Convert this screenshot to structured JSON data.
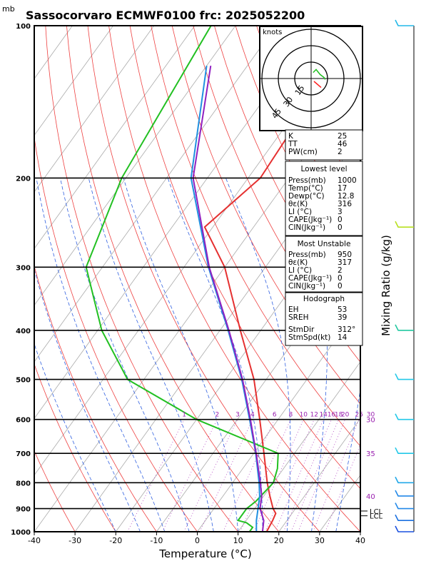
{
  "header": {
    "units_label": "mb",
    "title": "Sassocorvaro ECMWF0100  frc: 2025052200"
  },
  "xaxis": {
    "label": "Temperature (°C)"
  },
  "yaxis": {
    "label": "Mixing Ratio (g/kg)"
  },
  "hodograph": {
    "units": "knots",
    "ring_labels": [
      "15",
      "30",
      "45"
    ]
  },
  "indices": {
    "basic": [
      {
        "k": "K",
        "v": "25"
      },
      {
        "k": "TT",
        "v": "46"
      },
      {
        "k": "PW(cm)",
        "v": "2"
      }
    ],
    "lowest": {
      "title": "Lowest level",
      "rows": [
        {
          "k": "Press(mb)",
          "v": "1000"
        },
        {
          "k": "Temp(°C)",
          "v": "17"
        },
        {
          "k": "Dewp(°C)",
          "v": "12.8"
        },
        {
          "k": "θε(K)",
          "v": "316"
        },
        {
          "k": "LI (°C)",
          "v": "3"
        },
        {
          "k": "CAPE(Jkg⁻¹)",
          "v": "0"
        },
        {
          "k": "CIN(Jkg⁻¹)",
          "v": "0"
        }
      ]
    },
    "unstable": {
      "title": "Most Unstable",
      "rows": [
        {
          "k": "Press(mb)",
          "v": "950"
        },
        {
          "k": "θε(K)",
          "v": "317"
        },
        {
          "k": "LI (°C)",
          "v": "2"
        },
        {
          "k": "CAPE(Jkg⁻¹)",
          "v": "0"
        },
        {
          "k": "CIN(Jkg⁻¹)",
          "v": "0"
        }
      ]
    },
    "hodo": {
      "title": "Hodograph",
      "rows": [
        {
          "k": "EH",
          "v": "53"
        },
        {
          "k": "SREH",
          "v": "39"
        },
        {
          "k": "StmDir",
          "v": "312°"
        },
        {
          "k": "StmSpd(kt)",
          "v": "14"
        }
      ]
    }
  },
  "chart_data": {
    "type": "line",
    "x_range": [
      -40,
      40
    ],
    "y_range_hpa": [
      1000,
      100
    ],
    "y_scale": "log",
    "x_ticks": [
      -40,
      -30,
      -20,
      -10,
      0,
      10,
      20,
      30,
      40
    ],
    "pressure_labels": [
      100,
      200,
      300,
      400,
      500,
      600,
      700,
      800,
      900,
      1000
    ],
    "mixing_ratio_labels": [
      {
        "label": "1",
        "w": 1
      },
      {
        "label": "2",
        "w": 2
      },
      {
        "label": "3",
        "w": 3
      },
      {
        "label": "4",
        "w": 4
      },
      {
        "label": "6",
        "w": 6
      },
      {
        "label": "8",
        "w": 8
      },
      {
        "label": "10",
        "w": 10
      },
      {
        "label": "12",
        "w": 12
      },
      {
        "label": "14",
        "w": 14
      },
      {
        "label": "16",
        "w": 16
      },
      {
        "label": "18",
        "w": 18
      },
      {
        "label": "20",
        "w": 20
      },
      {
        "label": "25",
        "w": 25
      },
      {
        "label": "30",
        "w": 30
      }
    ],
    "series": [
      {
        "color": "#e53030",
        "points": [
          [
            1000,
            17.0
          ],
          [
            950,
            16.5
          ],
          [
            920,
            16.0
          ],
          [
            900,
            14.5
          ],
          [
            850,
            11.5
          ],
          [
            800,
            8.5
          ],
          [
            700,
            2.5
          ],
          [
            600,
            -4.5
          ],
          [
            500,
            -13
          ],
          [
            400,
            -25
          ],
          [
            300,
            -40
          ],
          [
            250,
            -52
          ],
          [
            200,
            -47
          ],
          [
            150,
            -48
          ],
          [
            100,
            -52
          ]
        ]
      },
      {
        "color": "#22c022",
        "points": [
          [
            1000,
            12.8
          ],
          [
            980,
            12.8
          ],
          [
            960,
            10.5
          ],
          [
            950,
            8.0
          ],
          [
            900,
            8.0
          ],
          [
            870,
            9.0
          ],
          [
            800,
            10.0
          ],
          [
            750,
            8.5
          ],
          [
            700,
            6.0
          ],
          [
            600,
            -20
          ],
          [
            500,
            -44
          ],
          [
            400,
            -59
          ],
          [
            300,
            -74
          ],
          [
            200,
            -81
          ],
          [
            100,
            -86
          ]
        ]
      },
      {
        "color": "#2090e0",
        "points": [
          [
            1000,
            14.5
          ],
          [
            950,
            12.5
          ],
          [
            900,
            10.8
          ],
          [
            850,
            9.0
          ],
          [
            800,
            6.5
          ],
          [
            700,
            0.5
          ],
          [
            600,
            -7
          ],
          [
            500,
            -16
          ],
          [
            400,
            -28
          ],
          [
            300,
            -44
          ],
          [
            200,
            -64
          ],
          [
            120,
            -80
          ]
        ]
      },
      {
        "color": "#9020c0",
        "points": [
          [
            1000,
            16.0
          ],
          [
            950,
            14.3
          ],
          [
            900,
            11.3
          ],
          [
            850,
            9.5
          ],
          [
            800,
            6.8
          ],
          [
            700,
            0.6
          ],
          [
            600,
            -6.8
          ],
          [
            500,
            -15.8
          ],
          [
            400,
            -27.8
          ],
          [
            300,
            -43.8
          ],
          [
            200,
            -63.5
          ],
          [
            120,
            -79
          ]
        ]
      }
    ],
    "right_labels": [
      {
        "label": "30",
        "p": 600
      },
      {
        "label": "35",
        "p": 700
      },
      {
        "label": "40",
        "p": 850
      },
      {
        "label": "LCL",
        "p": 910
      },
      {
        "label": "LCL",
        "p": 930
      }
    ],
    "wind_barbs": [
      {
        "p": 100,
        "color": "#22b8e8"
      },
      {
        "p": 250,
        "color": "#b8e020"
      },
      {
        "p": 400,
        "color": "#22c8a0"
      },
      {
        "p": 500,
        "color": "#22c8e8"
      },
      {
        "p": 600,
        "color": "#22c8e8"
      },
      {
        "p": 700,
        "color": "#22c8e8"
      },
      {
        "p": 800,
        "color": "#22a8e8"
      },
      {
        "p": 850,
        "color": "#2288e8"
      },
      {
        "p": 900,
        "color": "#2288e8"
      },
      {
        "p": 950,
        "color": "#1a70e0"
      },
      {
        "p": 1000,
        "color": "#1a50e0"
      }
    ],
    "hodograph_trace": {
      "green": [
        [
          0.2,
          0.6
        ],
        [
          0.5,
          0.9
        ],
        [
          0.9,
          0.4
        ],
        [
          1.3,
          0.1
        ],
        [
          1.4,
          -0.1
        ]
      ],
      "storm_motion": [
        1.0,
        -0.9
      ]
    }
  }
}
